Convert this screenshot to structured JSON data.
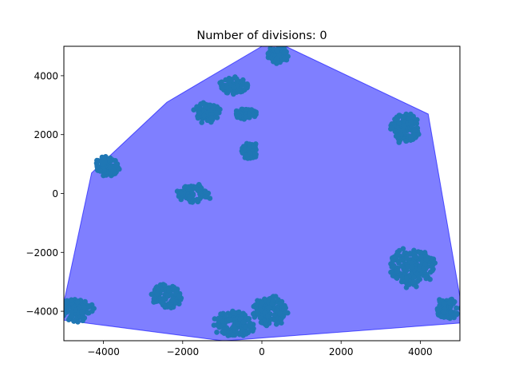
{
  "chart_data": {
    "type": "scatter",
    "title": "Number of divisions: 0",
    "xlabel": "",
    "ylabel": "",
    "xlim": [
      -5000,
      5000
    ],
    "ylim": [
      -5000,
      5000
    ],
    "xticks": [
      -4000,
      -2000,
      0,
      2000,
      4000
    ],
    "yticks": [
      -4000,
      -2000,
      0,
      2000,
      4000
    ],
    "xtick_labels": [
      "−4000",
      "−2000",
      "0",
      "2000",
      "4000"
    ],
    "ytick_labels": [
      "−4000",
      "−2000",
      "0",
      "2000",
      "4000"
    ],
    "grid": false,
    "colors": {
      "points": "#1f77b4",
      "hull_fill": "#0000ff",
      "hull_edge": "#0000ff"
    },
    "hull": {
      "fill_opacity": 0.5,
      "vertices": [
        [
          -5000,
          -3700
        ],
        [
          -5000,
          -4300
        ],
        [
          -1000,
          -5000
        ],
        [
          -900,
          -5000
        ],
        [
          5000,
          -4400
        ],
        [
          5000,
          -3500
        ],
        [
          4200,
          2700
        ],
        [
          600,
          5000
        ],
        [
          0,
          5000
        ],
        [
          -2400,
          3100
        ],
        [
          -4300,
          700
        ]
      ]
    },
    "clusters": [
      {
        "x": 400,
        "y": 4700,
        "rx": 300,
        "ry": 320
      },
      {
        "x": -700,
        "y": 3650,
        "rx": 420,
        "ry": 320
      },
      {
        "x": -1400,
        "y": 2750,
        "rx": 380,
        "ry": 380
      },
      {
        "x": -400,
        "y": 2700,
        "rx": 320,
        "ry": 220
      },
      {
        "x": 3600,
        "y": 2200,
        "rx": 400,
        "ry": 550
      },
      {
        "x": -300,
        "y": 1450,
        "rx": 260,
        "ry": 300
      },
      {
        "x": -3900,
        "y": 900,
        "rx": 340,
        "ry": 380
      },
      {
        "x": -1700,
        "y": 0,
        "rx": 470,
        "ry": 320
      },
      {
        "x": 3800,
        "y": -2500,
        "rx": 650,
        "ry": 750
      },
      {
        "x": -2400,
        "y": -3500,
        "rx": 450,
        "ry": 480
      },
      {
        "x": 200,
        "y": -4000,
        "rx": 480,
        "ry": 550
      },
      {
        "x": -700,
        "y": -4450,
        "rx": 580,
        "ry": 480
      },
      {
        "x": -4700,
        "y": -3950,
        "rx": 500,
        "ry": 420
      },
      {
        "x": 4700,
        "y": -3900,
        "rx": 350,
        "ry": 420
      }
    ]
  }
}
